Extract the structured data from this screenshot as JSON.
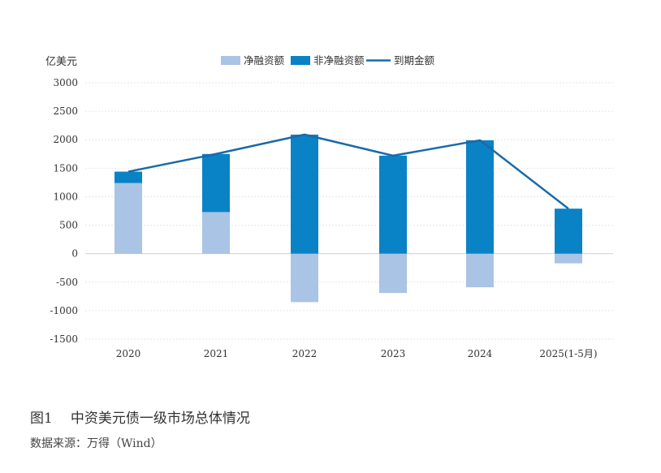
{
  "chart_data": {
    "type": "bar",
    "ylabel": "亿美元",
    "ylim": [
      -1500,
      3000
    ],
    "yticks": [
      3000,
      2500,
      2000,
      1500,
      1000,
      500,
      0,
      -500,
      -1000,
      -1500
    ],
    "categories": [
      "2020",
      "2021",
      "2022",
      "2023",
      "2024",
      "2025(1-5月)"
    ],
    "series": [
      {
        "name": "净融资额",
        "kind": "bar",
        "color": "#a9c4e4",
        "values": [
          1240,
          730,
          -850,
          -690,
          -590,
          -170
        ]
      },
      {
        "name": "非净融资额",
        "kind": "bar",
        "color": "#0a82c6",
        "values": [
          1440,
          1750,
          2090,
          1720,
          1990,
          790
        ]
      },
      {
        "name": "到期金额",
        "kind": "line",
        "color": "#1a6aa8",
        "values": [
          1440,
          1750,
          2090,
          1720,
          1990,
          790
        ]
      }
    ],
    "legend_position": "top-center",
    "grid": true
  },
  "caption": {
    "figure": "图1",
    "title": "中资美元债一级市场总体情况"
  },
  "source": "数据来源：万得（Wind）"
}
